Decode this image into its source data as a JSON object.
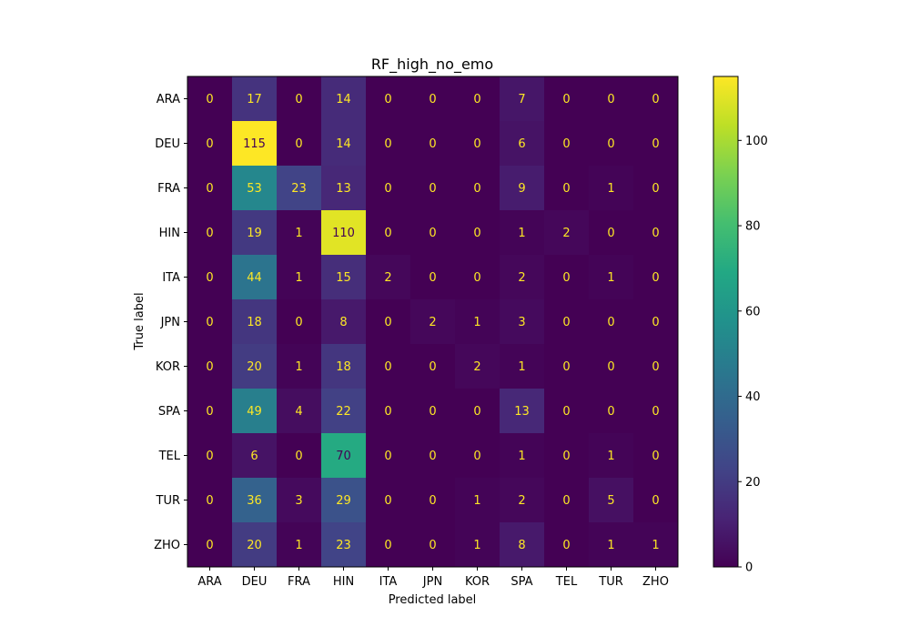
{
  "chart_data": {
    "type": "heatmap",
    "title": "RF_high_no_emo",
    "xlabel": "Predicted label",
    "ylabel": "True label",
    "x_categories": [
      "ARA",
      "DEU",
      "FRA",
      "HIN",
      "ITA",
      "JPN",
      "KOR",
      "SPA",
      "TEL",
      "TUR",
      "ZHO"
    ],
    "y_categories": [
      "ARA",
      "DEU",
      "FRA",
      "HIN",
      "ITA",
      "JPN",
      "KOR",
      "SPA",
      "TEL",
      "TUR",
      "ZHO"
    ],
    "values": [
      [
        0,
        17,
        0,
        14,
        0,
        0,
        0,
        7,
        0,
        0,
        0
      ],
      [
        0,
        115,
        0,
        14,
        0,
        0,
        0,
        6,
        0,
        0,
        0
      ],
      [
        0,
        53,
        23,
        13,
        0,
        0,
        0,
        9,
        0,
        1,
        0
      ],
      [
        0,
        19,
        1,
        110,
        0,
        0,
        0,
        1,
        2,
        0,
        0
      ],
      [
        0,
        44,
        1,
        15,
        2,
        0,
        0,
        2,
        0,
        1,
        0
      ],
      [
        0,
        18,
        0,
        8,
        0,
        2,
        1,
        3,
        0,
        0,
        0
      ],
      [
        0,
        20,
        1,
        18,
        0,
        0,
        2,
        1,
        0,
        0,
        0
      ],
      [
        0,
        49,
        4,
        22,
        0,
        0,
        0,
        13,
        0,
        0,
        0
      ],
      [
        0,
        6,
        0,
        70,
        0,
        0,
        0,
        1,
        0,
        1,
        0
      ],
      [
        0,
        36,
        3,
        29,
        0,
        0,
        1,
        2,
        0,
        5,
        0
      ],
      [
        0,
        20,
        1,
        23,
        0,
        0,
        1,
        8,
        0,
        1,
        1
      ]
    ],
    "colormap": "viridis",
    "colorbar": {
      "min": 0,
      "max": 115,
      "ticks": [
        0,
        20,
        40,
        60,
        80,
        100
      ]
    },
    "grid": false
  }
}
